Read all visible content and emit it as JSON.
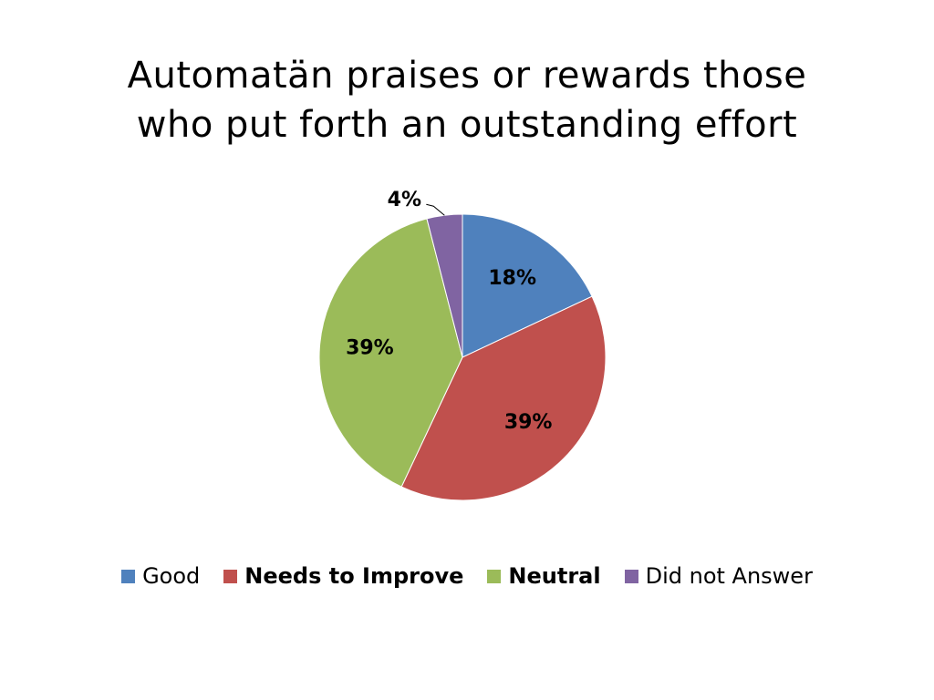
{
  "chart_data": {
    "type": "pie",
    "title": "Automatän praises or rewards those who put forth an outstanding effort",
    "categories": [
      "Good",
      "Needs to Improve",
      "Neutral",
      "Did not Answer"
    ],
    "values": [
      18,
      39,
      39,
      4
    ],
    "value_labels": [
      "18%",
      "39%",
      "39%",
      "4%"
    ],
    "colors": [
      "#4f81bd",
      "#c0504d",
      "#9bbb59",
      "#8064a2"
    ],
    "legend": "bottom"
  }
}
